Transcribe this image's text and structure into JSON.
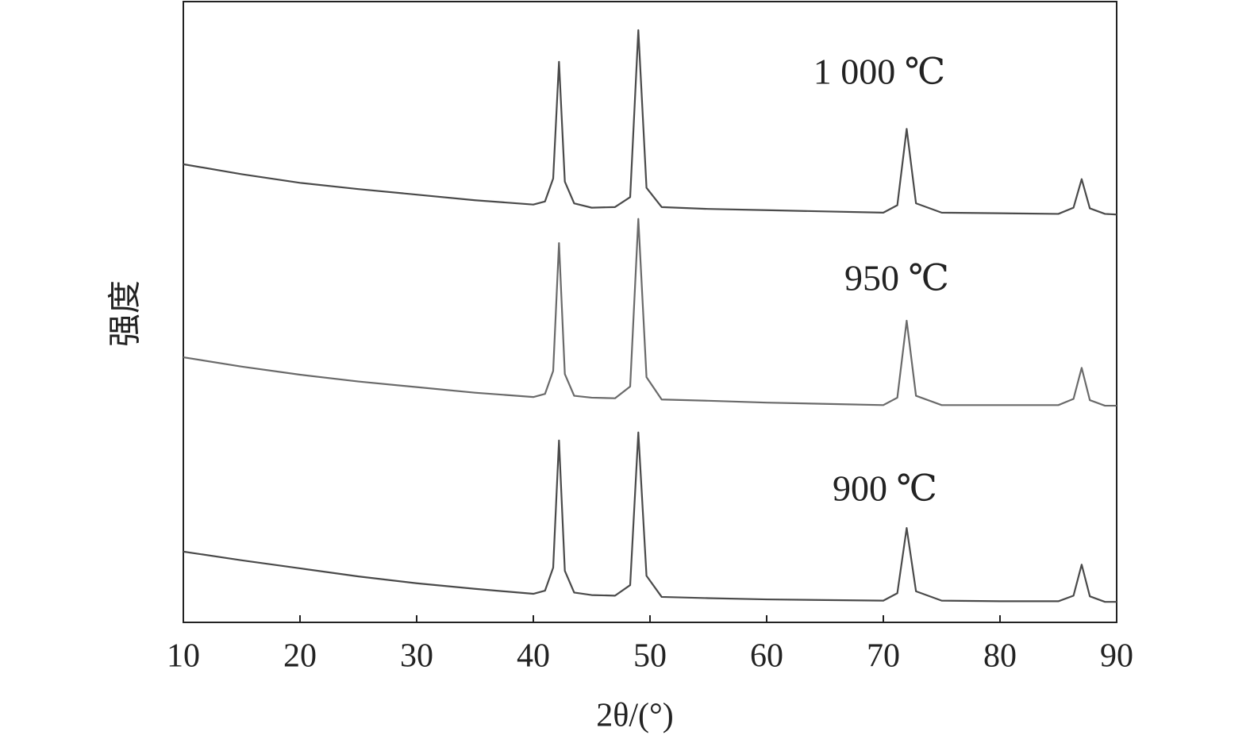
{
  "chart_data": {
    "type": "line",
    "x_label": "2θ/(°)",
    "y_label": "强度",
    "x": [
      10,
      15,
      20,
      25,
      30,
      35,
      40,
      41,
      41.7,
      42.2,
      42.7,
      43.5,
      45,
      47,
      48.3,
      49,
      49.7,
      51,
      55,
      60,
      65,
      70,
      71.2,
      72,
      72.8,
      75,
      80,
      85,
      86.3,
      87,
      87.7,
      89,
      90
    ],
    "series": [
      {
        "name": "1 000 ℃",
        "color": "#4a4a4a",
        "values": [
          73.8,
          72.2,
          70.8,
          69.8,
          68.9,
          68.0,
          67.3,
          67.8,
          71.5,
          90.3,
          71.0,
          67.5,
          66.8,
          66.9,
          68.5,
          95.4,
          70.0,
          66.9,
          66.6,
          66.4,
          66.2,
          66.0,
          67.2,
          79.5,
          67.5,
          66.0,
          65.9,
          65.8,
          66.8,
          71.4,
          66.7,
          65.8,
          65.7
        ]
      },
      {
        "name": "950 ℃",
        "color": "#6a6a6a",
        "values": [
          42.7,
          41.2,
          39.9,
          38.8,
          37.9,
          37.0,
          36.3,
          36.8,
          40.5,
          61.1,
          40.0,
          36.5,
          36.2,
          36.1,
          38.0,
          65.0,
          39.5,
          35.9,
          35.7,
          35.4,
          35.2,
          35.0,
          36.2,
          48.6,
          36.5,
          35.0,
          35.0,
          35.0,
          36.0,
          41.0,
          35.8,
          34.9,
          34.9
        ]
      },
      {
        "name": "900 ℃",
        "color": "#4a4a4a",
        "values": [
          11.4,
          10.0,
          8.7,
          7.4,
          6.3,
          5.4,
          4.6,
          5.1,
          8.8,
          29.3,
          8.3,
          4.8,
          4.4,
          4.3,
          6.0,
          30.6,
          7.5,
          4.1,
          3.9,
          3.7,
          3.6,
          3.5,
          4.7,
          15.2,
          5.0,
          3.5,
          3.4,
          3.4,
          4.3,
          9.3,
          4.2,
          3.3,
          3.3
        ]
      }
    ],
    "xlim": [
      10,
      90
    ],
    "xticks": [
      10,
      20,
      30,
      40,
      50,
      60,
      70,
      80,
      90
    ],
    "ylim": [
      0,
      100
    ]
  }
}
